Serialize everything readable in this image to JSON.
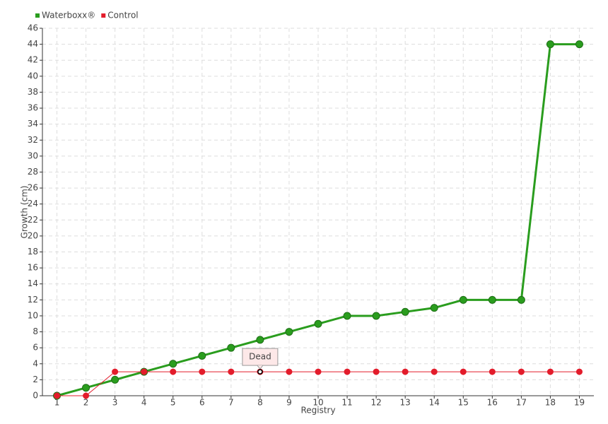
{
  "chart_data": {
    "type": "line",
    "x_label": "Registry",
    "y_label": "Growth (cm)",
    "x": [
      1,
      2,
      3,
      4,
      5,
      6,
      7,
      8,
      9,
      10,
      11,
      12,
      13,
      14,
      15,
      16,
      17,
      18,
      19
    ],
    "xlim": [
      0.5,
      19.5
    ],
    "xticks": [
      1,
      2,
      3,
      4,
      5,
      6,
      7,
      8,
      9,
      10,
      11,
      12,
      13,
      14,
      15,
      16,
      17,
      18,
      19
    ],
    "ylim": [
      0,
      46
    ],
    "yticks": [
      0,
      2,
      4,
      6,
      8,
      10,
      12,
      14,
      16,
      18,
      20,
      22,
      24,
      26,
      28,
      30,
      32,
      34,
      36,
      38,
      40,
      42,
      44,
      46
    ],
    "grid": true,
    "legend": "top-left",
    "series": [
      {
        "name": "Waterboxx®",
        "color": "#2a9d1e",
        "values": [
          0,
          1,
          2,
          3,
          4,
          5,
          6,
          7,
          8,
          9,
          10,
          10,
          10.5,
          11,
          12,
          12,
          12,
          44,
          44
        ]
      },
      {
        "name": "Control",
        "color": "#e31c2b",
        "values": [
          0,
          0,
          3,
          3,
          3,
          3,
          3,
          3,
          3,
          3,
          3,
          3,
          3,
          3,
          3,
          3,
          3,
          3,
          3
        ]
      }
    ],
    "annotations": [
      {
        "text": "Dead",
        "x": 8,
        "y": 3
      }
    ]
  }
}
